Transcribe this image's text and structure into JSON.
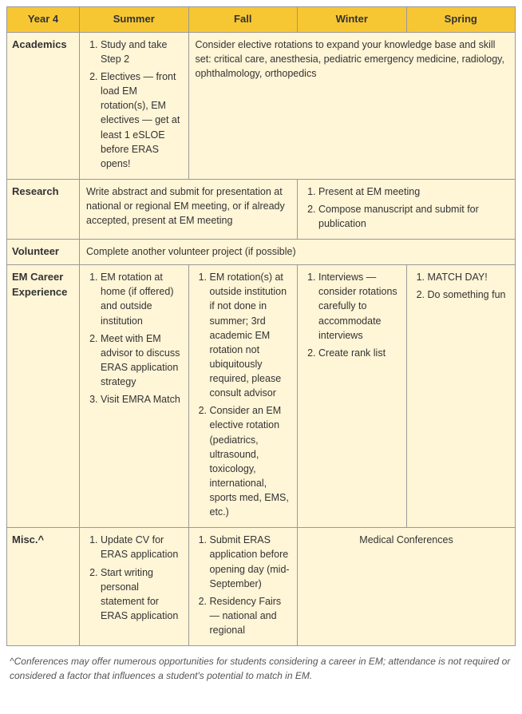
{
  "header": {
    "yearLabel": "Year 4",
    "cols": [
      "Summer",
      "Fall",
      "Winter",
      "Spring"
    ]
  },
  "colWidths": [
    "90px",
    "135px",
    "135px",
    "135px",
    "135px"
  ],
  "colors": {
    "headerBg": "#f7c733",
    "creamBg": "#fff5d7",
    "border": "#999999",
    "text": "#333333"
  },
  "rows": {
    "academics": {
      "label": "Academics",
      "summer": {
        "type": "ol",
        "items": [
          "Study and take Step 2",
          "Electives — front load EM rotation(s), EM electives — get at least 1 eSLOE before ERAS opens!"
        ]
      },
      "fws": {
        "type": "text",
        "text": "Consider elective rotations to expand your knowledge base and skill set: critical care, anesthesia, pediatric emergency medicine, radiology, ophthalmology, orthopedics"
      }
    },
    "research": {
      "label": "Research",
      "sf": {
        "type": "text",
        "text": "Write abstract and submit for presentation at national or regional EM meeting, or if already accepted, present at EM meeting"
      },
      "ws": {
        "type": "ol",
        "items": [
          "Present at EM meeting",
          "Compose manuscript and submit for publication"
        ]
      }
    },
    "volunteer": {
      "label": "Volunteer",
      "all": {
        "type": "text",
        "text": "Complete another volunteer project (if possible)"
      }
    },
    "emCareer": {
      "label": "EM Career Experience",
      "summer": {
        "type": "ol",
        "items": [
          "EM rotation at home (if offered) and outside institution",
          "Meet with EM advisor to discuss ERAS application strategy",
          "Visit EMRA Match"
        ]
      },
      "fall": {
        "type": "ol",
        "items": [
          "EM rotation(s) at outside institution if not done in summer; 3rd academic EM rotation not ubiquitously required, please consult advisor",
          "Consider an EM elective rotation (pediatrics, ultrasound, toxicology, international, sports med, EMS, etc.)"
        ]
      },
      "winter": {
        "type": "ol",
        "items": [
          "Interviews — consider rotations carefully to accommodate interviews",
          "Create rank list"
        ]
      },
      "spring": {
        "type": "ol",
        "items": [
          "MATCH DAY!",
          "Do something fun"
        ]
      }
    },
    "misc": {
      "label": "Misc.^",
      "summer": {
        "type": "ol",
        "items": [
          "Update CV for ERAS application",
          "Start writing personal statement for ERAS application"
        ]
      },
      "fall": {
        "type": "ol",
        "items": [
          "Submit ERAS application before opening day (mid-September)",
          "Residency Fairs — national and regional"
        ]
      },
      "ws": {
        "type": "text",
        "text": "Medical Conferences"
      }
    }
  },
  "footnote": "^Conferences may offer numerous opportunities for students considering a career in EM; attendance is not required or considered a factor that influences a student's potential to match in EM."
}
